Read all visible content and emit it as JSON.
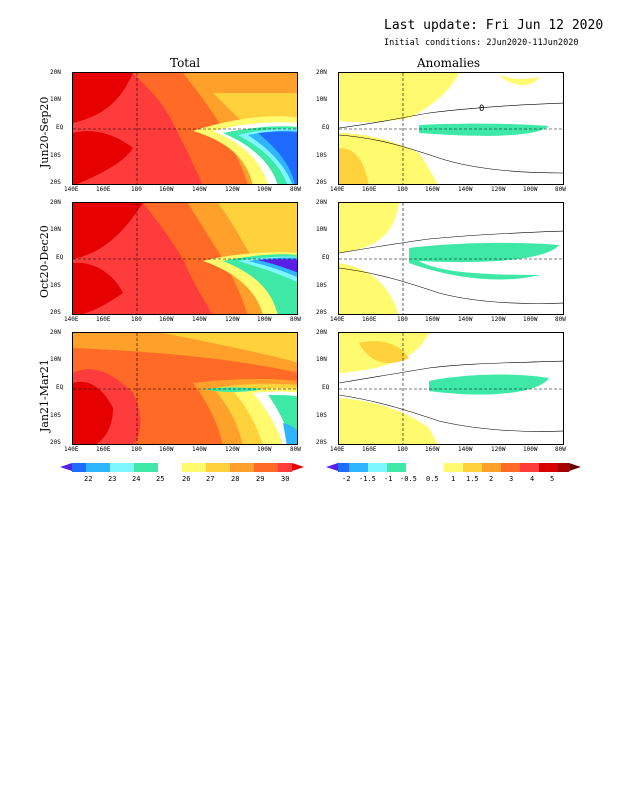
{
  "header": {
    "last_update": "Last update: Fri Jun 12 2020",
    "initial_conditions": "Initial conditions: 2Jun2020-11Jun2020"
  },
  "columns": {
    "total": "Total",
    "anomalies": "Anomalies"
  },
  "rows": [
    "Jun20-Sep20",
    "Oct20-Dec20",
    "Jan21-Mar21"
  ],
  "x_ticks": [
    "140E",
    "160E",
    "180",
    "160W",
    "140W",
    "120W",
    "100W",
    "80W"
  ],
  "y_ticks": [
    "20N",
    "10N",
    "EQ",
    "10S",
    "20S"
  ],
  "contour_label": "0",
  "total_colorbar": {
    "labels": [
      "22",
      "23",
      "24",
      "25",
      "26",
      "27",
      "28",
      "29",
      "30"
    ],
    "colors": [
      "#5a1ee6",
      "#1f6bff",
      "#2fb4ff",
      "#7ff7ff",
      "#3ee8a6",
      "#ffffff",
      "#fffa6e",
      "#ffd23c",
      "#ffa02a",
      "#ff6a26",
      "#ff3c3c",
      "#e60000"
    ]
  },
  "anomaly_colorbar": {
    "labels": [
      "-2",
      "-1.5",
      "-1",
      "-0.5",
      "0.5",
      "1",
      "1.5",
      "2",
      "3",
      "4",
      "5"
    ],
    "colors": [
      "#5a1ee6",
      "#1f6bff",
      "#2fb4ff",
      "#7ff7ff",
      "#3ee8a6",
      "#ffffff",
      "#fffa6e",
      "#ffd23c",
      "#ffa02a",
      "#ff6a26",
      "#ff3c3c",
      "#d90000",
      "#a50000",
      "#6b0000"
    ]
  }
}
